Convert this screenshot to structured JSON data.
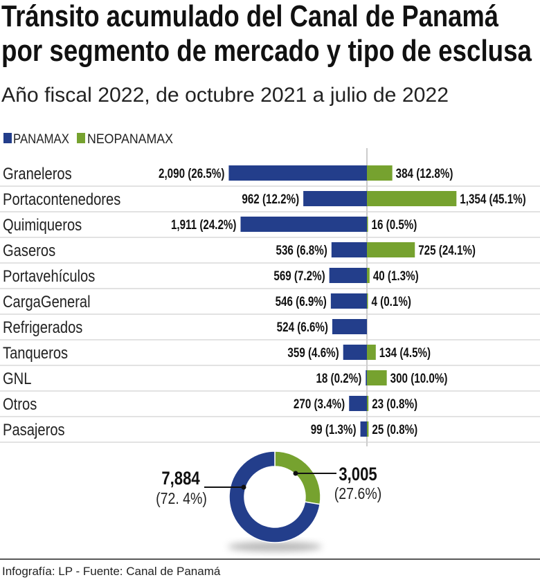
{
  "chart_data": [
    {
      "type": "bar",
      "orientation": "horizontal-diverging",
      "title": "Tránsito acumulado del Canal de Panamá por segmento de mercado y tipo de esclusa",
      "title_lines": [
        "Tránsito acumulado del Canal de Panamá",
        "por segmento de mercado y tipo de esclusa"
      ],
      "subtitle": "Año fiscal 2022, de octubre 2021 a julio de 2022",
      "legend_position": "top-left",
      "grid": false,
      "categories": [
        "Graneleros",
        "Portacontenedores",
        "Quimiqueros",
        "Gaseros",
        "Portavehículos",
        "CargaGeneral",
        "Refrigerados",
        "Tanqueros",
        "GNL",
        "Otros",
        "Pasajeros"
      ],
      "series": [
        {
          "name": "PANAMAX",
          "color": "#233e8b",
          "values": [
            2090,
            962,
            1911,
            536,
            569,
            546,
            524,
            359,
            18,
            270,
            99
          ],
          "labels": [
            "2,090 (26.5%)",
            "962 (12.2%)",
            "1,911 (24.2%)",
            "536 (6.8%)",
            "569 (7.2%)",
            "546 (6.9%)",
            "524 (6.6%)",
            "359 (4.6%)",
            "18 (0.2%)",
            "270 (3.4%)",
            "99 (1.3%)"
          ]
        },
        {
          "name": "NEOPANAMAX",
          "color": "#76a22f",
          "values": [
            384,
            1354,
            16,
            725,
            40,
            4,
            null,
            134,
            300,
            23,
            25
          ],
          "labels": [
            "384 (12.8%)",
            "1,354 (45.1%)",
            "16 (0.5%)",
            "725 (24.1%)",
            "40 (1.3%)",
            "4 (0.1%)",
            "",
            "134 (4.5%)",
            "300 (10.0%)",
            "23 (0.8%)",
            "25 (0.8%)"
          ]
        }
      ]
    },
    {
      "type": "pie",
      "style": "donut",
      "slices": [
        {
          "name": "PANAMAX",
          "value": 7884,
          "percent": 72.4,
          "value_label": "7,884",
          "percent_label": "(72. 4%)",
          "color": "#233e8b"
        },
        {
          "name": "NEOPANAMAX",
          "value": 3005,
          "percent": 27.6,
          "value_label": "3,005",
          "percent_label": "(27.6%)",
          "color": "#76a22f"
        }
      ]
    }
  ],
  "footer": "Infografía: LP - Fuente: Canal de Panamá"
}
